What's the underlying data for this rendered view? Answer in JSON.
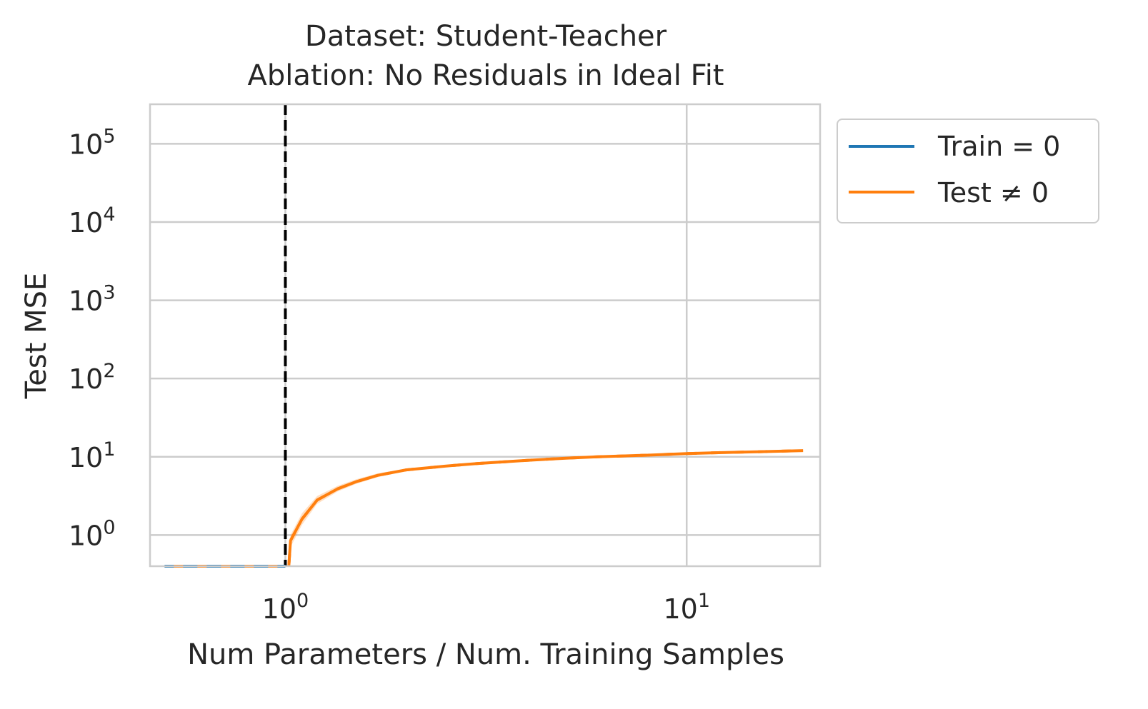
{
  "chart_data": {
    "type": "line",
    "title_line1": "Dataset: Student-Teacher",
    "title_line2": "Ablation: No Residuals in Ideal Fit",
    "xlabel": "Num Parameters / Num. Training Samples",
    "ylabel": "Test MSE",
    "xscale": "log",
    "yscale": "log",
    "xlim": [
      0.46,
      21.5
    ],
    "ylim": [
      0.4,
      320000
    ],
    "grid": true,
    "legend_placement": "outside-upper-right",
    "x_ticks": [
      {
        "value": 1,
        "base": "10",
        "exp": "0"
      },
      {
        "value": 10,
        "base": "10",
        "exp": "1"
      }
    ],
    "y_ticks": [
      {
        "value": 1,
        "base": "10",
        "exp": "0"
      },
      {
        "value": 10,
        "base": "10",
        "exp": "1"
      },
      {
        "value": 100,
        "base": "10",
        "exp": "2"
      },
      {
        "value": 1000,
        "base": "10",
        "exp": "3"
      },
      {
        "value": 10000,
        "base": "10",
        "exp": "4"
      },
      {
        "value": 100000,
        "base": "10",
        "exp": "5"
      }
    ],
    "threshold_line": {
      "x": 1.0,
      "color": "#000000",
      "style": "dashed"
    },
    "series": [
      {
        "name": "Train = 0",
        "color": "#1f77b4",
        "style": "solid",
        "x": [
          0.5,
          0.6,
          0.7,
          0.8,
          0.9,
          1.0
        ],
        "y": [
          0.4,
          0.4,
          0.4,
          0.4,
          0.4,
          0.4
        ]
      },
      {
        "name": "Test ≠ 0",
        "color": "#ff7f0e",
        "style": "solid",
        "x": [
          0.5,
          0.6,
          0.7,
          0.8,
          0.9,
          1.0,
          1.02,
          1.03,
          1.1,
          1.2,
          1.35,
          1.5,
          1.7,
          2.0,
          2.5,
          3.0,
          4.0,
          5.0,
          6.0,
          8.0,
          10.0,
          12.0,
          15.0,
          19.5
        ],
        "y": [
          0.4,
          0.4,
          0.4,
          0.4,
          0.4,
          0.4,
          0.4,
          0.85,
          1.6,
          2.8,
          3.9,
          4.8,
          5.8,
          6.8,
          7.6,
          8.2,
          9.0,
          9.6,
          10.0,
          10.5,
          11.0,
          11.3,
          11.6,
          12.0
        ],
        "band_lower": [
          0.4,
          0.4,
          0.4,
          0.4,
          0.4,
          0.4,
          0.4,
          0.7,
          1.35,
          2.5,
          3.6,
          4.5,
          5.5,
          6.6,
          7.4,
          8.0,
          8.8,
          9.4,
          9.85,
          10.35,
          10.85,
          11.15,
          11.45,
          11.85
        ],
        "band_upper": [
          0.4,
          0.4,
          0.4,
          0.4,
          0.4,
          0.4,
          0.4,
          1.0,
          1.9,
          3.15,
          4.25,
          5.15,
          6.15,
          7.05,
          7.8,
          8.4,
          9.2,
          9.8,
          10.15,
          10.65,
          11.15,
          11.45,
          11.75,
          12.15
        ]
      }
    ]
  }
}
